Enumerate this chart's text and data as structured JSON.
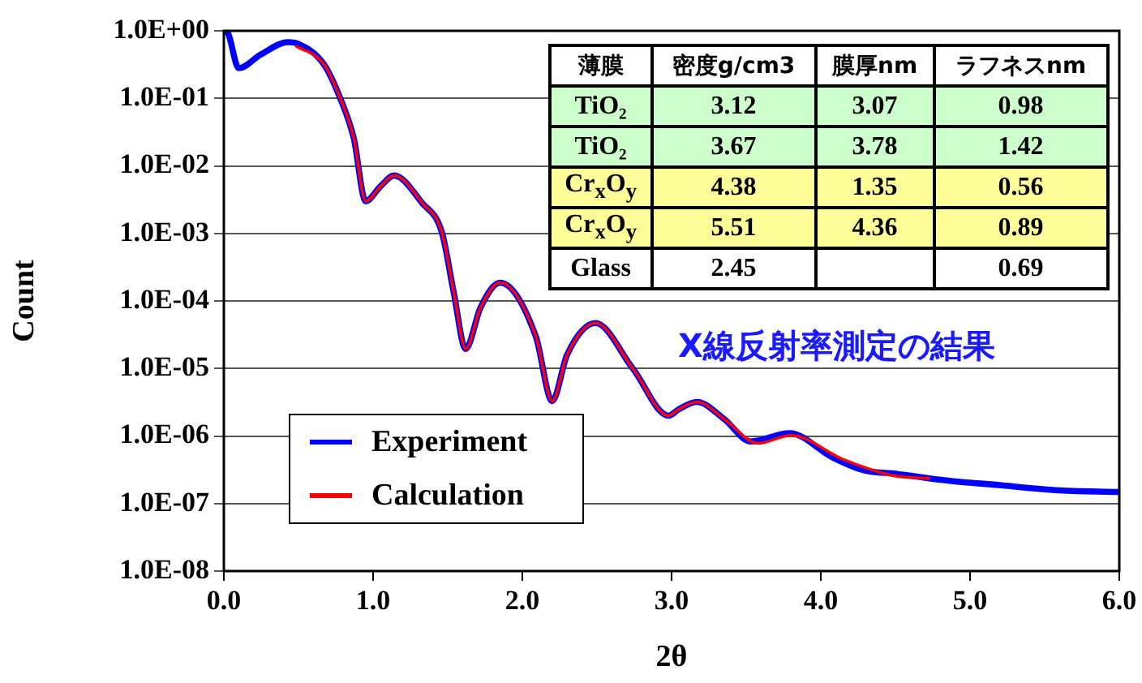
{
  "chart_data": {
    "type": "line",
    "xlabel": "2θ",
    "ylabel": "Count",
    "log": "y",
    "grid": "y",
    "legend": "bottom left",
    "marker": "none",
    "line_style": "solid",
    "xlim": [
      0,
      6
    ],
    "xticks": [
      {
        "value": 0,
        "label": "0.0"
      },
      {
        "value": 1,
        "label": "1.0"
      },
      {
        "value": 2,
        "label": "2.0"
      },
      {
        "value": 3,
        "label": "3.0"
      },
      {
        "value": 4,
        "label": "4.0"
      },
      {
        "value": 5,
        "label": "5.0"
      },
      {
        "value": 6,
        "label": "6.0"
      }
    ],
    "ylim": [
      1e-08,
      1
    ],
    "yticks": [
      {
        "value": 1e-08,
        "label": "1.0E-08"
      },
      {
        "value": 1e-07,
        "label": "1.0E-07"
      },
      {
        "value": 1e-06,
        "label": "1.0E-06"
      },
      {
        "value": 1e-05,
        "label": "1.0E-05"
      },
      {
        "value": 0.0001,
        "label": "1.0E-04"
      },
      {
        "value": 0.001,
        "label": "1.0E-03"
      },
      {
        "value": 0.01,
        "label": "1.0E-02"
      },
      {
        "value": 0.1,
        "label": "1.0E-01"
      },
      {
        "value": 1,
        "label": "1.0E+00"
      }
    ],
    "series": [
      {
        "name": "Experiment",
        "color": "#0000ff",
        "x": [
          0.01,
          0.03,
          0.1,
          0.25,
          0.43,
          0.49,
          0.67,
          0.78,
          0.87,
          0.95,
          1.05,
          1.14,
          1.33,
          1.46,
          1.54,
          1.62,
          1.72,
          1.85,
          2.09,
          2.2,
          2.3,
          2.49,
          2.74,
          2.98,
          3.05,
          3.17,
          3.35,
          3.53,
          3.79,
          4.08,
          4.29,
          4.51,
          4.84,
          5.21,
          5.57,
          6.0
        ],
        "values": [
          1.0,
          0.9,
          0.28,
          0.45,
          0.68,
          0.65,
          0.32,
          0.1,
          0.026,
          0.003,
          0.005,
          0.0072,
          0.0028,
          0.00105,
          0.000135,
          1.95e-05,
          8e-05,
          0.000186,
          3e-05,
          3.3e-06,
          1.6e-05,
          4.7e-05,
          1e-05,
          2e-06,
          2.5e-06,
          3.2e-06,
          1.8e-06,
          8.3e-07,
          1.1e-06,
          4.8e-07,
          3.1e-07,
          2.75e-07,
          2.2e-07,
          1.86e-07,
          1.58e-07,
          1.48e-07
        ]
      },
      {
        "name": "Calculation",
        "color": "#ff0000",
        "x": [
          0.48,
          0.67,
          0.78,
          0.87,
          0.95,
          1.05,
          1.14,
          1.33,
          1.46,
          1.54,
          1.62,
          1.72,
          1.85,
          2.09,
          2.2,
          2.3,
          2.49,
          2.74,
          2.98,
          3.05,
          3.17,
          3.35,
          3.58,
          3.8,
          4.15,
          4.48,
          4.73
        ],
        "values": [
          0.6,
          0.32,
          0.1,
          0.026,
          0.003,
          0.005,
          0.0072,
          0.0028,
          0.00105,
          0.000135,
          1.95e-05,
          8e-05,
          0.000186,
          3e-05,
          3.3e-06,
          1.6e-05,
          4.7e-05,
          1e-05,
          2e-06,
          2.5e-06,
          3.2e-06,
          1.8e-06,
          7.8e-07,
          1.02e-06,
          4.5e-07,
          2.6e-07,
          2.35e-07
        ]
      }
    ],
    "annotations": [
      "X線反射率測定の結果",
      "薄膜",
      "密度g/cm3",
      "膜厚nm",
      "ラフネスnm",
      "TiO₂",
      "3.12",
      "3.07",
      "0.98",
      "TiO₂",
      "3.67",
      "3.78",
      "1.42",
      "Cr$_{x}$O$_{y}$",
      "4.38",
      "1.35",
      "0.56",
      "Cr$_{x}$O$_{y}$",
      "5.51",
      "4.36",
      "0.89",
      "Glass",
      "2.45",
      null,
      "0.69"
    ]
  }
}
